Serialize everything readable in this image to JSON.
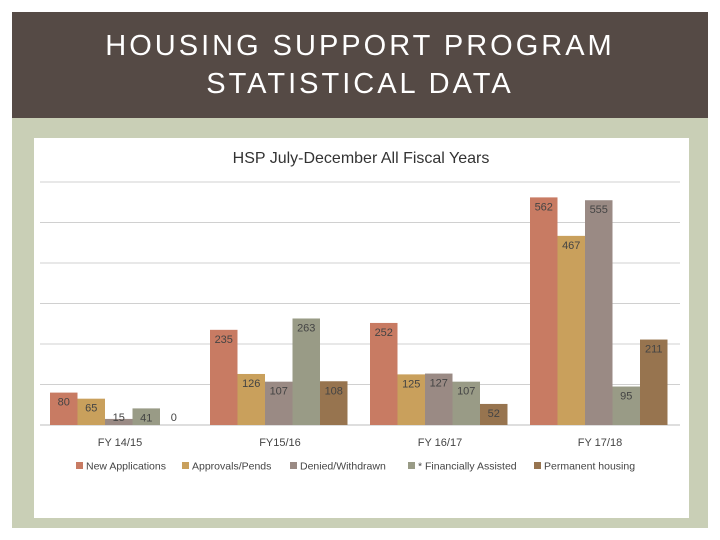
{
  "slide": {
    "title_line1": "HOUSING SUPPORT PROGRAM",
    "title_line2": "STATISTICAL DATA"
  },
  "chart_data": {
    "type": "bar",
    "title": "HSP July-December All Fiscal Years",
    "categories": [
      "FY 14/15",
      "FY15/16",
      "FY 16/17",
      "FY 17/18"
    ],
    "series": [
      {
        "name": "New Applications",
        "color": "#c87b63",
        "values": [
          80,
          235,
          252,
          562
        ]
      },
      {
        "name": "Approvals/Pends",
        "color": "#c9a05c",
        "values": [
          65,
          126,
          125,
          467
        ]
      },
      {
        "name": "Denied/Withdrawn",
        "color": "#9a8a84",
        "values": [
          15,
          107,
          127,
          555
        ]
      },
      {
        "name": "* Financially Assisted",
        "color": "#999b86",
        "values": [
          41,
          263,
          107,
          95
        ]
      },
      {
        "name": "Permanent housing",
        "color": "#97744f",
        "values": [
          0,
          108,
          52,
          211
        ]
      }
    ],
    "ylim": [
      0,
      600
    ],
    "gridlines": true,
    "legend": "bottom",
    "xlabel": "",
    "ylabel": ""
  }
}
